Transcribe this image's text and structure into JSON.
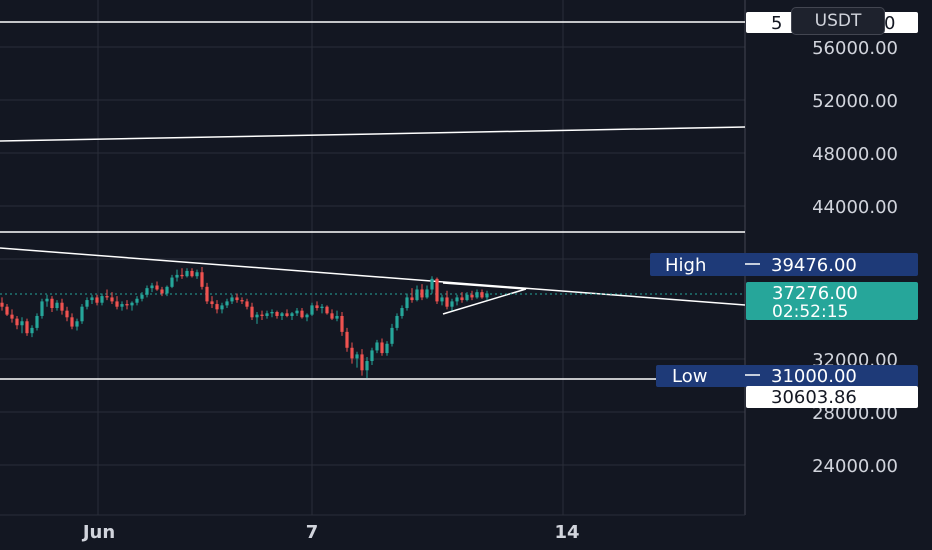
{
  "currency": "USDT",
  "colors": {
    "background": "#131722",
    "grid": "#2a2e39",
    "up": "#26a69a",
    "down": "#ef5350",
    "drawing": "#ffffff",
    "label_navy": "#1e3a78",
    "price_tag": "#26a69a"
  },
  "chart_data": {
    "type": "candlestick",
    "y_ticks": [
      "56000.00",
      "52000.00",
      "48000.00",
      "44000.00",
      "32000.00",
      "28000.00",
      "24000.00"
    ],
    "x_ticks": [
      "Jun",
      "7",
      "14"
    ],
    "annotations": [
      {
        "label": "High",
        "price": 39476,
        "price_text": "39476.00"
      },
      {
        "label": "Low",
        "price": 31000,
        "price_text": "31000.00"
      }
    ],
    "horizontal_levels": [
      {
        "price": 58000,
        "tag": "5",
        "tag_tail": "0"
      },
      {
        "price": 41400
      },
      {
        "price": 30603.86,
        "price_text": "30603.86"
      }
    ],
    "last_price": {
      "value": 37276,
      "text": "37276.00",
      "countdown": "02:52:15"
    },
    "candles": [
      [
        36700,
        37100,
        36100,
        36400
      ],
      [
        36400,
        36600,
        35700,
        35800
      ],
      [
        35800,
        36200,
        35200,
        35500
      ],
      [
        35500,
        35700,
        34700,
        35000
      ],
      [
        35000,
        35600,
        34400,
        35300
      ],
      [
        35300,
        35500,
        34200,
        34400
      ],
      [
        34400,
        35000,
        34100,
        34800
      ],
      [
        34800,
        35900,
        34600,
        35700
      ],
      [
        35700,
        37000,
        35500,
        36800
      ],
      [
        36800,
        37300,
        36400,
        37000
      ],
      [
        37000,
        37200,
        36000,
        36300
      ],
      [
        36300,
        36900,
        36100,
        36700
      ],
      [
        36700,
        37000,
        35800,
        36100
      ],
      [
        36100,
        36400,
        35300,
        35600
      ],
      [
        35600,
        35900,
        34700,
        34900
      ],
      [
        34900,
        35500,
        34600,
        35300
      ],
      [
        35300,
        36600,
        35100,
        36400
      ],
      [
        36400,
        37100,
        36200,
        36900
      ],
      [
        36900,
        37300,
        36600,
        37100
      ],
      [
        37100,
        37300,
        36500,
        36700
      ],
      [
        36700,
        37400,
        36500,
        37200
      ],
      [
        37200,
        37700,
        36900,
        37100
      ],
      [
        37100,
        37500,
        36600,
        36800
      ],
      [
        36800,
        37200,
        36200,
        36400
      ],
      [
        36400,
        36800,
        36100,
        36600
      ],
      [
        36600,
        36900,
        36200,
        36500
      ],
      [
        36500,
        36800,
        36100,
        36700
      ],
      [
        36700,
        37200,
        36500,
        37000
      ],
      [
        37000,
        37500,
        36800,
        37300
      ],
      [
        37300,
        38000,
        37100,
        37800
      ],
      [
        37800,
        38200,
        37500,
        38000
      ],
      [
        38000,
        38300,
        37600,
        37700
      ],
      [
        37700,
        37900,
        37200,
        37400
      ],
      [
        37400,
        38000,
        37200,
        37900
      ],
      [
        37900,
        38800,
        37800,
        38600
      ],
      [
        38600,
        39200,
        38300,
        38800
      ],
      [
        38800,
        39300,
        38500,
        38700
      ],
      [
        38700,
        39300,
        38600,
        39100
      ],
      [
        39100,
        39300,
        38600,
        38700
      ],
      [
        38700,
        39200,
        38500,
        39000
      ],
      [
        39000,
        39400,
        37700,
        37900
      ],
      [
        37900,
        38200,
        36600,
        36800
      ],
      [
        36800,
        37200,
        36300,
        36600
      ],
      [
        36600,
        36900,
        35900,
        36200
      ],
      [
        36200,
        36700,
        35900,
        36500
      ],
      [
        36500,
        37000,
        36300,
        36800
      ],
      [
        36800,
        37300,
        36600,
        37100
      ],
      [
        37100,
        37400,
        36700,
        36900
      ],
      [
        36900,
        37100,
        36600,
        36800
      ],
      [
        36800,
        37000,
        36200,
        36400
      ],
      [
        36400,
        36700,
        35400,
        35600
      ],
      [
        35600,
        36000,
        35100,
        35800
      ],
      [
        35800,
        36100,
        35400,
        35700
      ],
      [
        35700,
        36100,
        35500,
        35900
      ],
      [
        35900,
        36200,
        35600,
        36000
      ],
      [
        36000,
        36100,
        35500,
        35700
      ],
      [
        35700,
        36000,
        35400,
        35900
      ],
      [
        35900,
        36200,
        35600,
        35700
      ],
      [
        35700,
        36000,
        35400,
        35900
      ],
      [
        35900,
        36300,
        35700,
        36100
      ],
      [
        36100,
        36300,
        35500,
        35600
      ],
      [
        35600,
        35900,
        35300,
        35800
      ],
      [
        35800,
        36700,
        35700,
        36500
      ],
      [
        36500,
        36800,
        36100,
        36300
      ],
      [
        36300,
        36600,
        35900,
        36400
      ],
      [
        36400,
        36500,
        35800,
        35900
      ],
      [
        35900,
        36200,
        35400,
        35500
      ],
      [
        35500,
        36100,
        35300,
        35700
      ],
      [
        35700,
        36000,
        34200,
        34500
      ],
      [
        34500,
        34800,
        33000,
        33300
      ],
      [
        33300,
        33700,
        32100,
        32500
      ],
      [
        32500,
        33000,
        31800,
        32800
      ],
      [
        32800,
        33200,
        31200,
        31600
      ],
      [
        31600,
        32600,
        31000,
        32300
      ],
      [
        32300,
        33300,
        32000,
        33100
      ],
      [
        33100,
        33900,
        32900,
        33700
      ],
      [
        33700,
        34000,
        32700,
        32900
      ],
      [
        32900,
        33800,
        32700,
        33600
      ],
      [
        33600,
        35100,
        33400,
        34800
      ],
      [
        34800,
        35900,
        34600,
        35700
      ],
      [
        35700,
        36500,
        35500,
        36300
      ],
      [
        36300,
        37400,
        36100,
        37100
      ],
      [
        37100,
        37800,
        36700,
        36900
      ],
      [
        36900,
        38000,
        36800,
        37700
      ],
      [
        37700,
        38100,
        36900,
        37100
      ],
      [
        37100,
        38000,
        37000,
        37700
      ],
      [
        37700,
        38700,
        37400,
        38500
      ],
      [
        38500,
        38600,
        36600,
        36800
      ],
      [
        36800,
        37300,
        36500,
        37100
      ],
      [
        37100,
        37600,
        36200,
        36400
      ],
      [
        36400,
        37000,
        36100,
        36800
      ],
      [
        36800,
        37300,
        36500,
        37100
      ],
      [
        37100,
        37500,
        36700,
        36900
      ],
      [
        36900,
        37500,
        36800,
        37300
      ],
      [
        37300,
        37600,
        36900,
        37100
      ],
      [
        37100,
        37700,
        37000,
        37500
      ],
      [
        37500,
        37700,
        37000,
        37100
      ],
      [
        37100,
        37600,
        36900,
        37400
      ]
    ]
  }
}
